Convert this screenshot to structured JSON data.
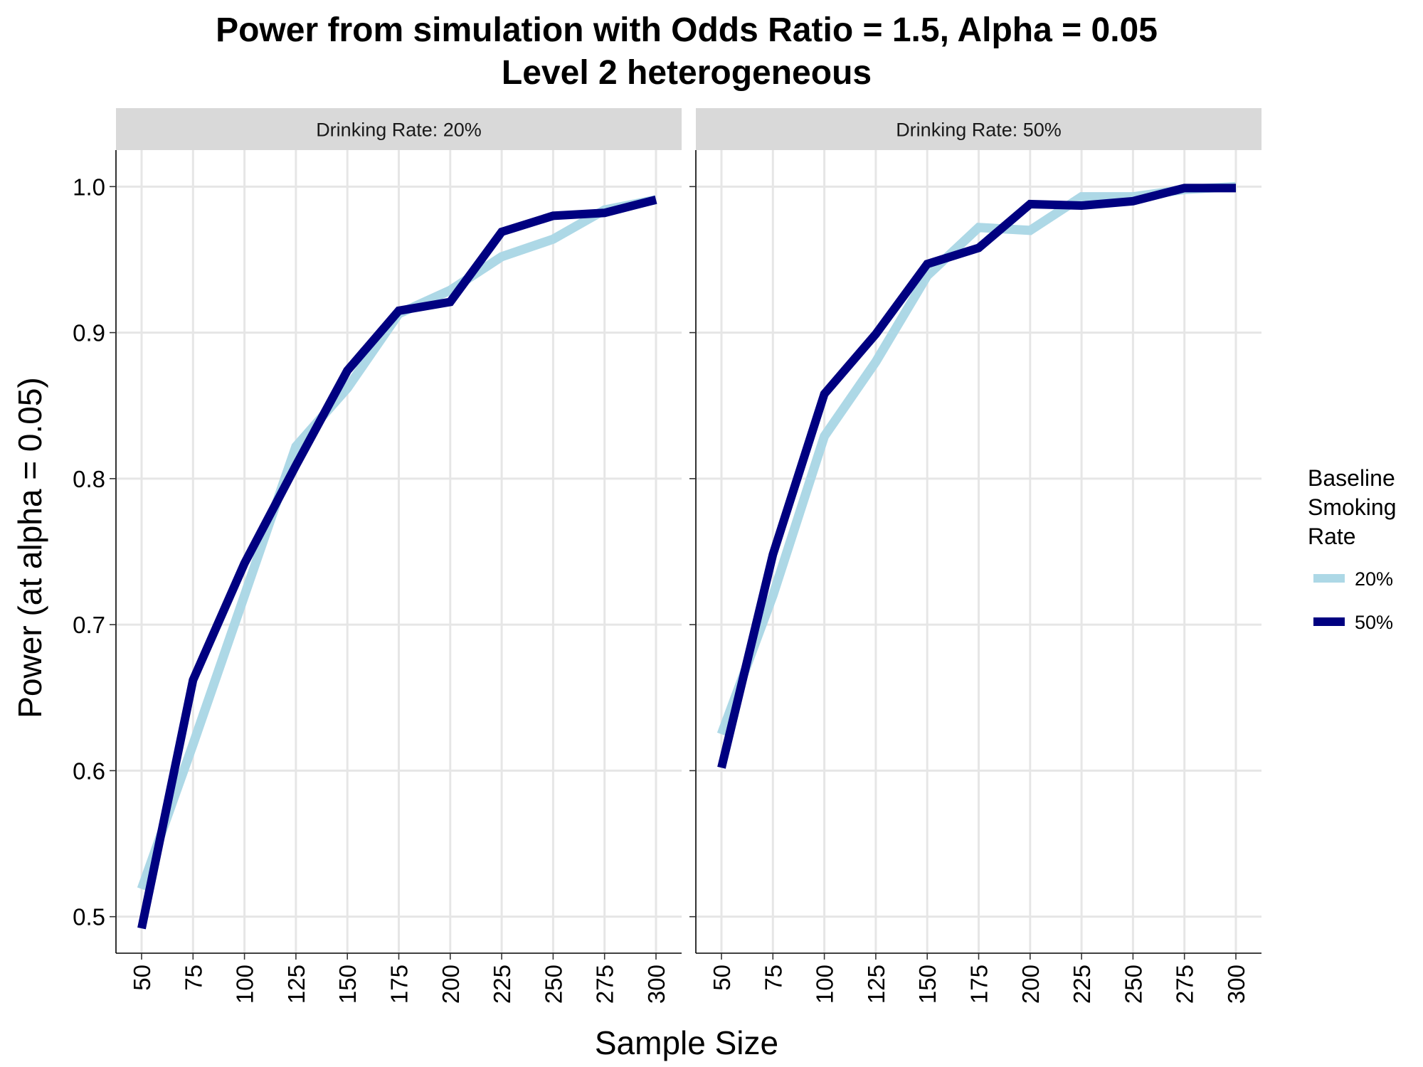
{
  "chart_data": {
    "type": "line",
    "title": "Power from simulation with Odds Ratio = 1.5, Alpha = 0.05",
    "subtitle": "Level 2 heterogeneous",
    "xlabel": "Sample Size",
    "ylabel": "Power (at alpha = 0.05)",
    "x": [
      50,
      75,
      100,
      125,
      150,
      175,
      200,
      225,
      250,
      275,
      300
    ],
    "x_ticks": [
      "50",
      "75",
      "100",
      "125",
      "150",
      "175",
      "200",
      "225",
      "250",
      "275",
      "300"
    ],
    "y_ticks": [
      "0.5",
      "0.6",
      "0.7",
      "0.8",
      "0.9",
      "1.0"
    ],
    "ylim": [
      0.475,
      1.025
    ],
    "grid": true,
    "legend": {
      "title": [
        "Baseline",
        "Smoking",
        "Rate"
      ],
      "placement": "right",
      "entries": [
        {
          "label": "20%",
          "color": "#add8e6"
        },
        {
          "label": "50%",
          "color": "#000080"
        }
      ]
    },
    "panels": [
      {
        "strip": "Drinking Rate: 20%",
        "series": [
          {
            "name": "20%",
            "color": "#add8e6",
            "values": [
              0.519,
              0.618,
              0.72,
              0.822,
              0.862,
              0.913,
              0.929,
              0.952,
              0.964,
              0.984,
              0.991
            ]
          },
          {
            "name": "50%",
            "color": "#000080",
            "values": [
              0.492,
              0.662,
              0.742,
              0.809,
              0.874,
              0.915,
              0.921,
              0.969,
              0.98,
              0.982,
              0.991
            ]
          }
        ]
      },
      {
        "strip": "Drinking Rate: 50%",
        "series": [
          {
            "name": "20%",
            "color": "#add8e6",
            "values": [
              0.625,
              0.72,
              0.829,
              0.88,
              0.939,
              0.972,
              0.97,
              0.993,
              0.993,
              0.998,
              1.0
            ]
          },
          {
            "name": "50%",
            "color": "#000080",
            "values": [
              0.602,
              0.748,
              0.858,
              0.899,
              0.947,
              0.958,
              0.988,
              0.987,
              0.99,
              0.999,
              0.999
            ]
          }
        ]
      }
    ]
  }
}
